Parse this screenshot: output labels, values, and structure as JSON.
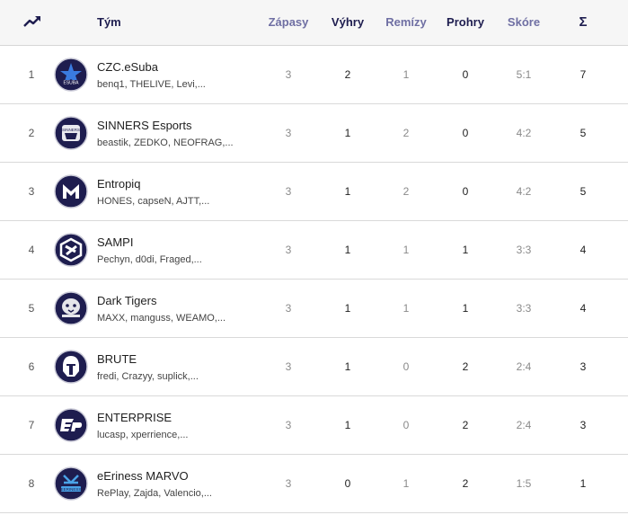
{
  "header": {
    "team": "Tým",
    "played": "Zápasy",
    "wins": "Výhry",
    "draws": "Remízy",
    "losses": "Prohry",
    "score": "Skóre",
    "sum": "Σ"
  },
  "colors": {
    "accent": "#1e1d4f",
    "header_muted": "#6f6fa3",
    "logo_bg": "#1e1d4f"
  },
  "rows": [
    {
      "rank": "1",
      "team": "CZC.eSuba",
      "players": "benq1, THELIVE, Levi,...",
      "played": "3",
      "wins": "2",
      "draws": "1",
      "losses": "0",
      "score": "5:1",
      "sum": "7",
      "logo": "star-logo-icon"
    },
    {
      "rank": "2",
      "team": "SINNERS Esports",
      "players": "beastik, ZEDKO, NEOFRAG,...",
      "played": "3",
      "wins": "1",
      "draws": "2",
      "losses": "0",
      "score": "4:2",
      "sum": "5",
      "logo": "sinners-logo-icon"
    },
    {
      "rank": "3",
      "team": "Entropiq",
      "players": "HONES, capseN, AJTT,...",
      "played": "3",
      "wins": "1",
      "draws": "2",
      "losses": "0",
      "score": "4:2",
      "sum": "5",
      "logo": "entropiq-logo-icon"
    },
    {
      "rank": "4",
      "team": "SAMPI",
      "players": "Pechyn, d0di, Fraged,...",
      "played": "3",
      "wins": "1",
      "draws": "1",
      "losses": "1",
      "score": "3:3",
      "sum": "4",
      "logo": "sampi-logo-icon"
    },
    {
      "rank": "5",
      "team": "Dark Tigers",
      "players": "MAXX, manguss, WEAMO,...",
      "played": "3",
      "wins": "1",
      "draws": "1",
      "losses": "1",
      "score": "3:3",
      "sum": "4",
      "logo": "tiger-logo-icon"
    },
    {
      "rank": "6",
      "team": "BRUTE",
      "players": "fredi, Crazyy, suplick,...",
      "played": "3",
      "wins": "1",
      "draws": "0",
      "losses": "2",
      "score": "2:4",
      "sum": "3",
      "logo": "helmet-logo-icon"
    },
    {
      "rank": "7",
      "team": "ENTERPRISE",
      "players": "lucasp, xperrience,...",
      "played": "3",
      "wins": "1",
      "draws": "0",
      "losses": "2",
      "score": "2:4",
      "sum": "3",
      "logo": "enterprise-logo-icon"
    },
    {
      "rank": "8",
      "team": "eEriness MARVO",
      "players": "RePlay, Zajda, Valencio,...",
      "played": "3",
      "wins": "0",
      "draws": "1",
      "losses": "2",
      "score": "1:5",
      "sum": "1",
      "logo": "eeriness-logo-icon"
    }
  ]
}
